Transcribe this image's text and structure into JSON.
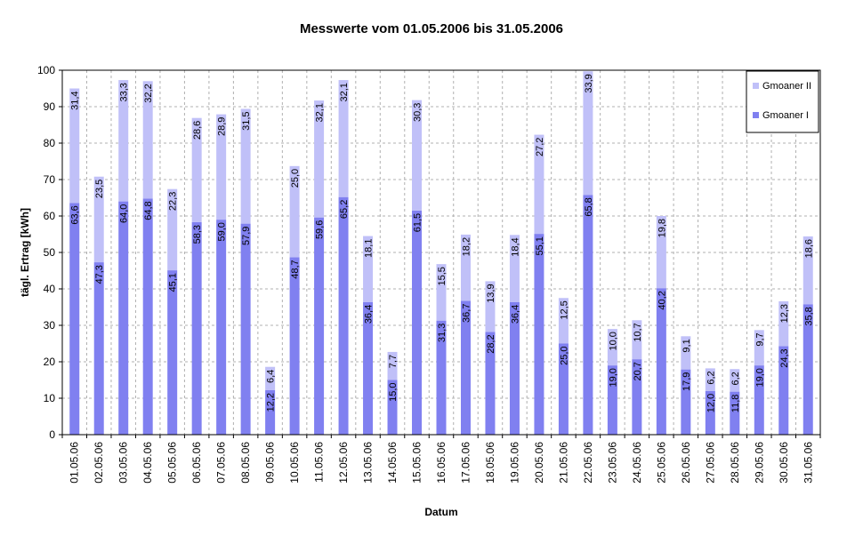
{
  "chart_data": {
    "type": "bar",
    "stacked": true,
    "title": "Messwerte vom 01.05.2006 bis 31.05.2006",
    "xlabel": "Datum",
    "ylabel": "tägl. Ertrag [kWh]",
    "ylim": [
      0,
      100
    ],
    "yticks": [
      "0",
      "10",
      "20",
      "30",
      "40",
      "50",
      "60",
      "70",
      "80",
      "90",
      "100"
    ],
    "grid": true,
    "legend_position": "top-right",
    "categories": [
      "01.05.06",
      "02.05.06",
      "03.05.06",
      "04.05.06",
      "05.05.06",
      "06.05.06",
      "07.05.06",
      "08.05.06",
      "09.05.06",
      "10.05.06",
      "11.05.06",
      "12.05.06",
      "13.05.06",
      "14.05.06",
      "15.05.06",
      "16.05.06",
      "17.05.06",
      "18.05.06",
      "19.05.06",
      "20.05.06",
      "21.05.06",
      "22.05.06",
      "23.05.06",
      "24.05.06",
      "25.05.06",
      "26.05.06",
      "27.05.06",
      "28.05.06",
      "29.05.06",
      "30.05.06",
      "31.05.06"
    ],
    "series": [
      {
        "name": "Gmoaner I",
        "color": "#8080f0",
        "values": [
          63.6,
          47.3,
          64.0,
          64.8,
          45.1,
          58.3,
          59.0,
          57.9,
          12.2,
          48.7,
          59.6,
          65.2,
          36.4,
          15.0,
          61.5,
          31.3,
          36.7,
          28.2,
          36.4,
          55.1,
          25.0,
          65.8,
          19.0,
          20.7,
          40.2,
          17.9,
          12.0,
          11.8,
          19.0,
          24.3,
          35.8
        ],
        "labels": [
          "63,6",
          "47,3",
          "64,0",
          "64,8",
          "45,1",
          "58,3",
          "59,0",
          "57,9",
          "12,2",
          "48,7",
          "59,6",
          "65,2",
          "36,4",
          "15,0",
          "61,5",
          "31,3",
          "36,7",
          "28,2",
          "36,4",
          "55,1",
          "25,0",
          "65,8",
          "19,0",
          "20,7",
          "40,2",
          "17,9",
          "12,0",
          "11,8",
          "19,0",
          "24,3",
          "35,8"
        ]
      },
      {
        "name": "Gmoaner II",
        "color": "#c0c0f8",
        "values": [
          31.4,
          23.5,
          33.3,
          32.2,
          22.3,
          28.6,
          28.9,
          31.5,
          6.4,
          25.0,
          32.1,
          32.1,
          18.1,
          7.7,
          30.3,
          15.5,
          18.2,
          13.9,
          18.4,
          27.2,
          12.5,
          33.9,
          10.0,
          10.7,
          19.8,
          9.1,
          6.2,
          6.2,
          9.7,
          12.3,
          18.6
        ],
        "labels": [
          "31,4",
          "23,5",
          "33,3",
          "32,2",
          "22,3",
          "28,6",
          "28,9",
          "31,5",
          "6,4",
          "25,0",
          "32,1",
          "32,1",
          "18,1",
          "7,7",
          "30,3",
          "15,5",
          "18,2",
          "13,9",
          "18,4",
          "27,2",
          "12,5",
          "33,9",
          "10,0",
          "10,7",
          "19,8",
          "9,1",
          "6,2",
          "6,2",
          "9,7",
          "12,3",
          "18,6"
        ]
      }
    ]
  }
}
